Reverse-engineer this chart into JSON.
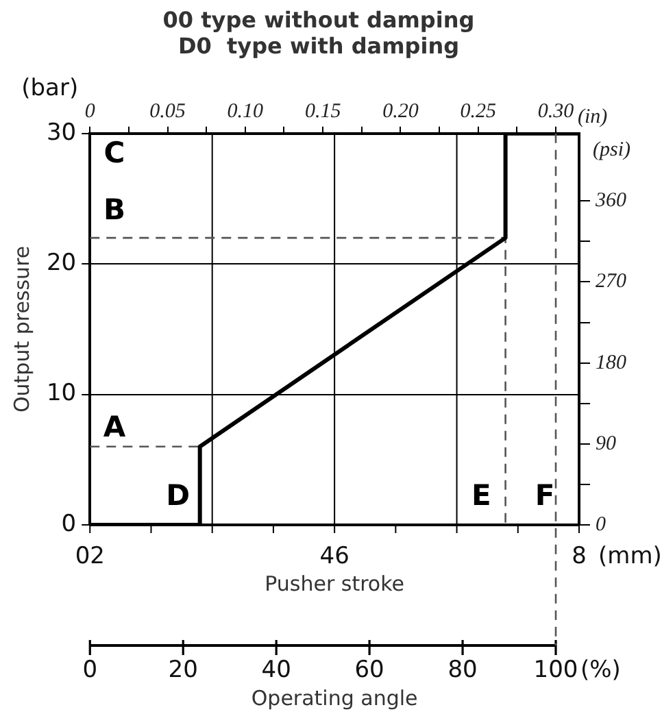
{
  "chart_data": {
    "type": "line",
    "title": "00 type without damping",
    "subtitle": "D0  type with damping",
    "xlabel": "Operating angle",
    "ylabel": "Output pressure",
    "x2label": "(in)",
    "y2label": "(psi)",
    "xlim": [
      0,
      105
    ],
    "xticks": [
      0,
      20,
      40,
      60,
      80,
      100
    ],
    "ylim": [
      0,
      30
    ],
    "yticks": [
      0,
      10,
      20,
      30
    ],
    "x2lim": [
      0,
      0.315
    ],
    "x2ticks": [
      0,
      {
        "value": 0.025,
        "label": null
      },
      0.05,
      {
        "value": 0.075,
        "label": null
      },
      {
        "value": 0.1,
        "label": "0.10"
      },
      {
        "value": 0.125,
        "label": null
      },
      0.15,
      {
        "value": 0.175,
        "label": null
      },
      {
        "value": 0.2,
        "label": "0.20"
      },
      {
        "value": 0.225,
        "label": null
      },
      0.25,
      {
        "value": 0.275,
        "label": null
      },
      {
        "value": 0.3,
        "label": "0.30"
      }
    ],
    "y2lim": [
      0,
      435
    ],
    "y2ticks": [
      0,
      {
        "value": 45,
        "label": null
      },
      90,
      {
        "value": 135,
        "label": null
      },
      180,
      {
        "value": 225,
        "label": null
      },
      270,
      {
        "value": 315,
        "label": null
      },
      360
    ],
    "grid": true,
    "legend": false,
    "marker": "none",
    "series": [
      {
        "color": "#000000",
        "line_style": "solid",
        "x": [
          0,
          23.6,
          23.6,
          89.2,
          89.2,
          105
        ],
        "values": [
          0,
          0,
          6,
          22,
          30,
          30
        ]
      },
      {
        "color": "#555555",
        "line_style": "dashed",
        "x": [
          0,
          23.6
        ],
        "values": [
          6,
          6
        ]
      },
      {
        "color": "#555555",
        "line_style": "dashed",
        "x": [
          0,
          89.2,
          89.2
        ],
        "values": [
          22,
          22,
          0
        ]
      }
    ],
    "ref_lines": [
      {
        "axis": "x",
        "value": 100,
        "line_style": "dashed",
        "color": "#555555"
      }
    ],
    "annotations": [
      "(bar)",
      "(mm)",
      "(%)",
      "A",
      "B",
      "C",
      "D",
      "E",
      "F",
      "02",
      "46",
      "8",
      "Pusher stroke"
    ]
  }
}
